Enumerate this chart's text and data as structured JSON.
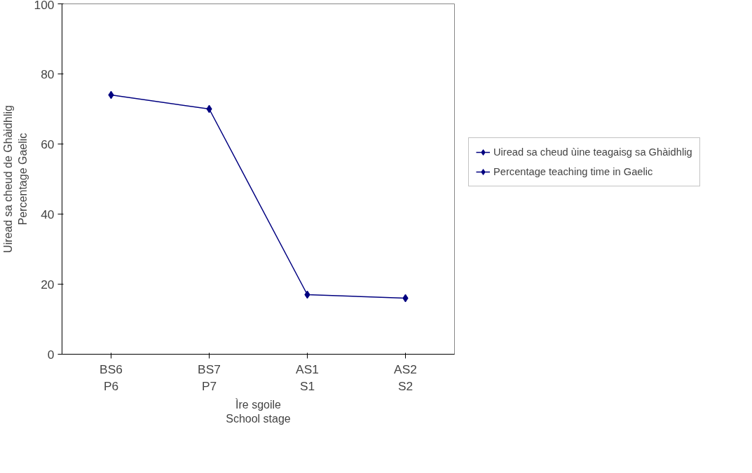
{
  "chart_data": {
    "type": "line",
    "categories": [
      "BS6\nP6",
      "BS7\nP7",
      "AS1\nS1",
      "AS2\nS2"
    ],
    "series": [
      {
        "name": "Uiread sa cheud ùine teagaisg sa Ghàidhlig\nPercentage teaching time in Gaelic",
        "color": "#000080",
        "values": [
          74,
          70,
          17,
          16
        ]
      }
    ],
    "xlabel": "Ìre sgoile\nSchool stage",
    "ylabel": "Uiread sa cheud de Ghàidhlig\nPercentage Gaelic",
    "ylim": [
      0,
      100
    ],
    "yticks": [
      0,
      20,
      40,
      60,
      80,
      100
    ],
    "marker": "diamond",
    "line_style": "solid",
    "grid": false,
    "legend": "right"
  }
}
